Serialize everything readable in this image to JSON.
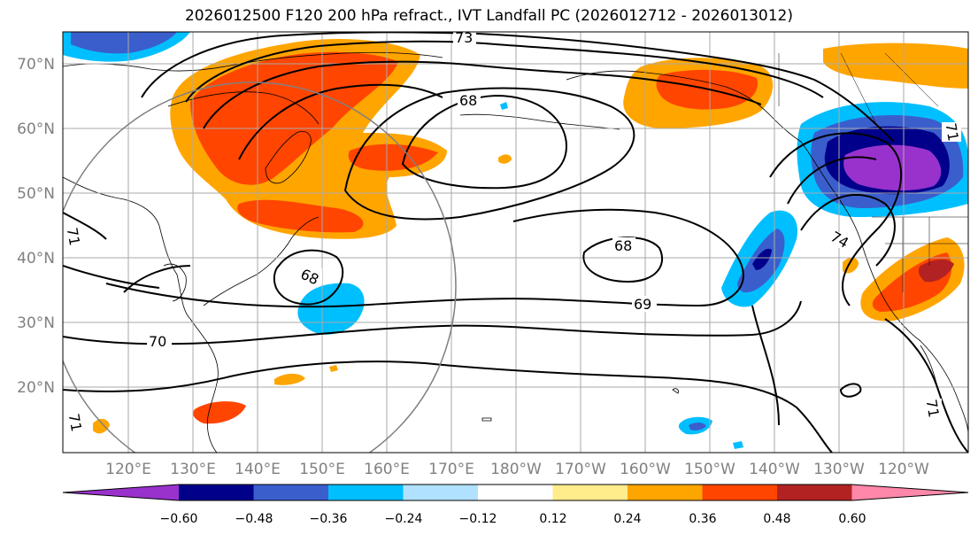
{
  "title": "2026012500 F120 200 hPa refract., IVT Landfall PC (2026012712 - 2026013012)",
  "lat_labels": [
    "70°N",
    "60°N",
    "50°N",
    "40°N",
    "30°N",
    "20°N"
  ],
  "lon_labels": [
    "120°E",
    "130°E",
    "140°E",
    "150°E",
    "160°E",
    "170°E",
    "180°W",
    "170°W",
    "160°W",
    "150°W",
    "140°W",
    "130°W",
    "120°W"
  ],
  "contour_labels": [
    "73",
    "68",
    "68",
    "68",
    "69",
    "70",
    "71",
    "71",
    "74",
    "71",
    "71"
  ],
  "colorbar": {
    "colors": [
      "#9932cc",
      "#00008b",
      "#3a5fcd",
      "#00bfff",
      "#b0e2ff",
      "#ffffff",
      "#ffec8b",
      "#ffa500",
      "#ff4500",
      "#b22222",
      "#ff88aa"
    ],
    "tick_labels": [
      "−0.60",
      "−0.48",
      "−0.36",
      "−0.24",
      "−0.12",
      "0.12",
      "0.24",
      "0.36",
      "0.48",
      "0.60"
    ]
  },
  "colors": {
    "grid": "#aaaaaa",
    "contour": "#000000",
    "circle": "#808080"
  }
}
